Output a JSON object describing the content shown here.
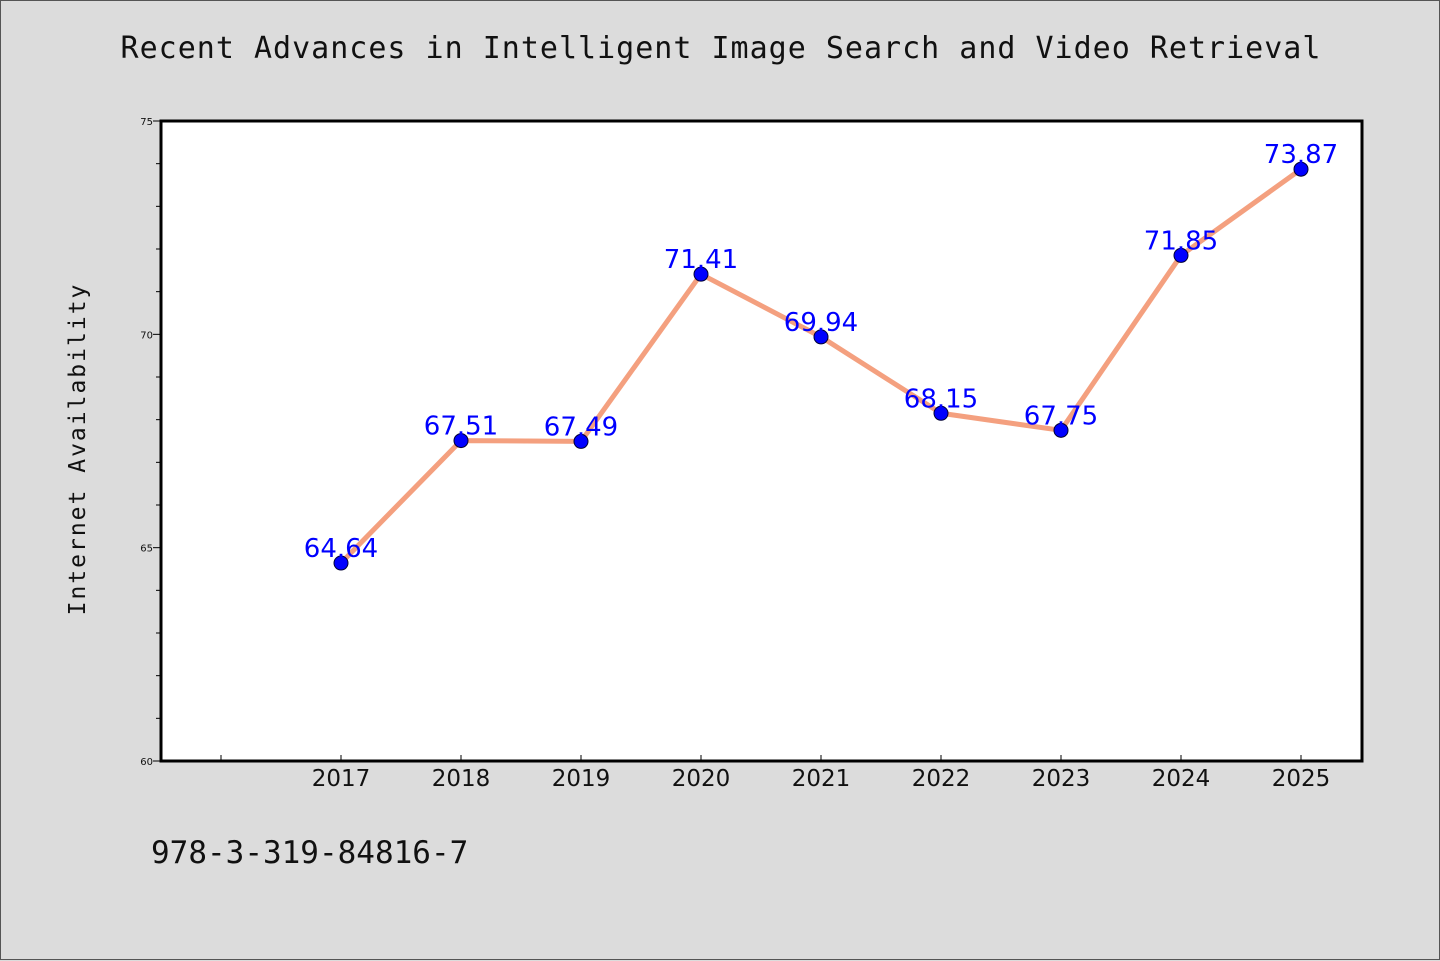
{
  "chart_data": {
    "type": "line",
    "title": "Recent Advances in Intelligent Image Search and Video Retrieval",
    "xlabel": "",
    "ylabel": "Internet Availability",
    "categories": [
      "2017",
      "2018",
      "2019",
      "2020",
      "2021",
      "2022",
      "2023",
      "2024",
      "2025"
    ],
    "series": [
      {
        "values": [
          64.64,
          67.51,
          67.49,
          71.41,
          69.94,
          68.15,
          67.75,
          71.85,
          73.87
        ],
        "labels": [
          "64.64",
          "67.51",
          "67.49",
          "71.41",
          "69.94",
          "68.15",
          "67.75",
          "71.85",
          "73.87"
        ]
      }
    ],
    "ylim": [
      60,
      75
    ],
    "yticks": [
      "60",
      "65",
      "70",
      "75"
    ],
    "grid": false,
    "legend": "none",
    "colors": {
      "line": "#f4a07f",
      "marker": "#0000ff",
      "data_label": "#0000ff",
      "plot_background": "#ffffff",
      "page_background": "#dcdcdc"
    }
  },
  "footer": {
    "isbn": "978-3-319-84816-7"
  }
}
